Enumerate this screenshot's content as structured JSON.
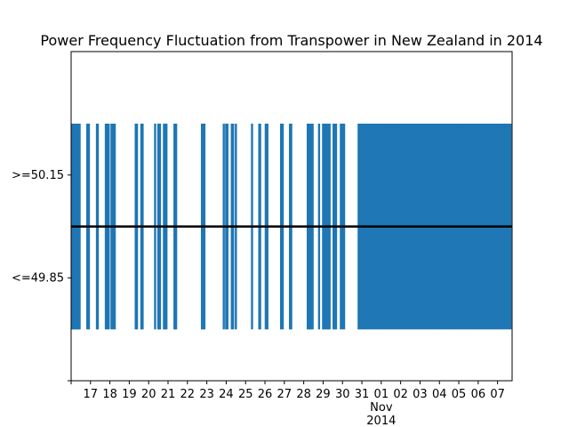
{
  "chart_data": {
    "type": "line",
    "title": "Power Frequency Fluctuation from Transpower in  New Zealand in 2014",
    "xlabel": "",
    "ylabel": "",
    "x_range": [
      "2014-10-16",
      "2014-11-07T18:00"
    ],
    "y_levels": [
      0,
      1,
      2,
      3
    ],
    "ylim": [
      0,
      3.2
    ],
    "y_ticks": [
      {
        "value": 0,
        "label": ""
      },
      {
        "value": 1,
        "label": "<=49.85"
      },
      {
        "value": 2,
        "label": ">=50.15"
      }
    ],
    "x_ticks": [
      {
        "date": "2014-10-16",
        "label": ""
      },
      {
        "date": "2014-10-17",
        "label": "17"
      },
      {
        "date": "2014-10-18",
        "label": "18"
      },
      {
        "date": "2014-10-19",
        "label": "19"
      },
      {
        "date": "2014-10-20",
        "label": "20"
      },
      {
        "date": "2014-10-21",
        "label": "21"
      },
      {
        "date": "2014-10-22",
        "label": "22"
      },
      {
        "date": "2014-10-23",
        "label": "23"
      },
      {
        "date": "2014-10-24",
        "label": "24"
      },
      {
        "date": "2014-10-25",
        "label": "25"
      },
      {
        "date": "2014-10-26",
        "label": "26"
      },
      {
        "date": "2014-10-27",
        "label": "27"
      },
      {
        "date": "2014-10-28",
        "label": "28"
      },
      {
        "date": "2014-10-29",
        "label": "29"
      },
      {
        "date": "2014-10-30",
        "label": "30"
      },
      {
        "date": "2014-10-31",
        "label": "31"
      },
      {
        "date": "2014-11-01",
        "label": "01\nNov\n2014"
      },
      {
        "date": "2014-11-02",
        "label": "02"
      },
      {
        "date": "2014-11-03",
        "label": "03"
      },
      {
        "date": "2014-11-04",
        "label": "04"
      },
      {
        "date": "2014-11-05",
        "label": "05"
      },
      {
        "date": "2014-11-06",
        "label": "06"
      },
      {
        "date": "2014-11-07",
        "label": "07"
      }
    ],
    "reference_line": {
      "y": 1.5,
      "color": "#000000"
    },
    "series": [
      {
        "color": "#1f77b4",
        "low": 0.5,
        "high": 2.5,
        "excursion_dates": [
          "2014-10-16T01:00",
          "2014-10-16T02:00",
          "2014-10-16T03:00",
          "2014-10-16T04:30",
          "2014-10-16T05:30",
          "2014-10-16T07:00",
          "2014-10-16T08:00",
          "2014-10-16T09:30",
          "2014-10-16T10:30",
          "2014-10-16T20:00",
          "2014-10-16T22:00",
          "2014-10-17T08:00",
          "2014-10-17T09:00",
          "2014-10-17T19:00",
          "2014-10-17T21:00",
          "2014-10-17T22:30",
          "2014-10-18T02:00",
          "2014-10-18T04:00",
          "2014-10-18T06:00",
          "2014-10-19T08:00",
          "2014-10-19T09:30",
          "2014-10-19T15:00",
          "2014-10-19T16:30",
          "2014-10-20T08:00",
          "2014-10-20T12:00",
          "2014-10-20T13:00",
          "2014-10-20T14:00",
          "2014-10-20T19:00",
          "2014-10-20T20:30",
          "2014-10-20T22:00",
          "2014-10-21T08:00",
          "2014-10-21T09:00",
          "2014-10-21T10:00",
          "2014-10-22T18:00",
          "2014-10-22T19:30",
          "2014-10-22T21:00",
          "2014-10-23T21:00",
          "2014-10-24T00:00",
          "2014-10-24T01:30",
          "2014-10-24T07:00",
          "2014-10-24T08:30",
          "2014-10-24T12:00",
          "2014-10-25T08:00",
          "2014-10-25T17:00",
          "2014-10-25T18:00",
          "2014-10-26T01:00",
          "2014-10-26T03:00",
          "2014-10-26T20:00",
          "2014-10-26T22:00",
          "2014-10-27T07:00",
          "2014-10-27T08:30",
          "2014-10-28T05:00",
          "2014-10-28T06:30",
          "2014-10-28T08:00",
          "2014-10-28T09:30",
          "2014-10-28T11:00",
          "2014-10-28T19:00",
          "2014-10-29T00:00",
          "2014-10-29T01:30",
          "2014-10-29T03:00",
          "2014-10-29T05:00",
          "2014-10-29T06:30",
          "2014-10-29T08:00",
          "2014-10-29T13:00",
          "2014-10-29T14:30",
          "2014-10-29T16:00",
          "2014-10-29T22:00",
          "2014-10-30T00:00",
          "2014-10-30T02:00",
          "2014-10-30T20:00",
          "2014-10-30T21:30",
          "2014-10-30T23:00",
          "2014-10-31T01:00",
          "2014-10-31T02:30",
          "2014-10-31T04:00",
          "2014-10-31T06:00",
          "2014-10-31T08:00",
          "2014-10-31T10:00",
          "2014-10-31T12:00",
          "2014-10-31T14:00",
          "2014-10-31T16:00",
          "2014-10-31T18:00",
          "2014-10-31T20:00",
          "2014-10-31T22:00",
          "2014-11-01T00:00",
          "2014-11-01T02:00",
          "2014-11-01T04:00",
          "2014-11-01T06:00",
          "2014-11-01T08:00",
          "2014-11-01T10:00",
          "2014-11-01T12:00",
          "2014-11-01T14:00",
          "2014-11-01T16:00",
          "2014-11-01T18:00",
          "2014-11-01T20:00",
          "2014-11-01T22:00",
          "2014-11-02T00:00",
          "2014-11-02T02:00",
          "2014-11-02T04:00",
          "2014-11-02T06:00",
          "2014-11-02T08:00",
          "2014-11-02T10:00",
          "2014-11-02T12:00",
          "2014-11-02T14:00",
          "2014-11-02T16:00",
          "2014-11-02T18:00",
          "2014-11-02T20:00",
          "2014-11-02T22:00",
          "2014-11-03T00:00",
          "2014-11-03T02:00",
          "2014-11-03T04:00",
          "2014-11-03T06:00",
          "2014-11-03T08:00",
          "2014-11-03T10:00",
          "2014-11-03T12:00",
          "2014-11-03T14:00",
          "2014-11-03T16:00",
          "2014-11-03T18:00",
          "2014-11-03T20:00",
          "2014-11-03T22:00",
          "2014-11-04T00:00",
          "2014-11-04T02:00",
          "2014-11-04T04:00",
          "2014-11-04T06:00",
          "2014-11-04T08:00",
          "2014-11-04T10:00",
          "2014-11-04T12:00",
          "2014-11-04T14:00",
          "2014-11-04T16:00",
          "2014-11-04T18:00",
          "2014-11-04T20:00",
          "2014-11-04T22:00",
          "2014-11-05T00:00",
          "2014-11-05T02:00",
          "2014-11-05T04:00",
          "2014-11-05T06:00",
          "2014-11-05T08:00",
          "2014-11-05T10:00",
          "2014-11-05T12:00",
          "2014-11-05T14:00",
          "2014-11-05T16:00",
          "2014-11-05T18:00",
          "2014-11-05T20:00",
          "2014-11-05T22:00",
          "2014-11-06T00:00",
          "2014-11-06T02:00",
          "2014-11-06T04:00",
          "2014-11-06T06:00",
          "2014-11-06T08:00",
          "2014-11-06T10:00",
          "2014-11-06T12:00",
          "2014-11-06T14:00",
          "2014-11-06T16:00",
          "2014-11-06T18:00",
          "2014-11-06T20:00",
          "2014-11-06T22:00",
          "2014-11-07T00:00",
          "2014-11-07T02:00",
          "2014-11-07T04:00",
          "2014-11-07T06:00",
          "2014-11-07T08:00",
          "2014-11-07T10:00",
          "2014-11-07T12:00",
          "2014-11-07T14:00",
          "2014-11-07T16:00"
        ]
      }
    ],
    "grid": false,
    "legend": "none"
  }
}
